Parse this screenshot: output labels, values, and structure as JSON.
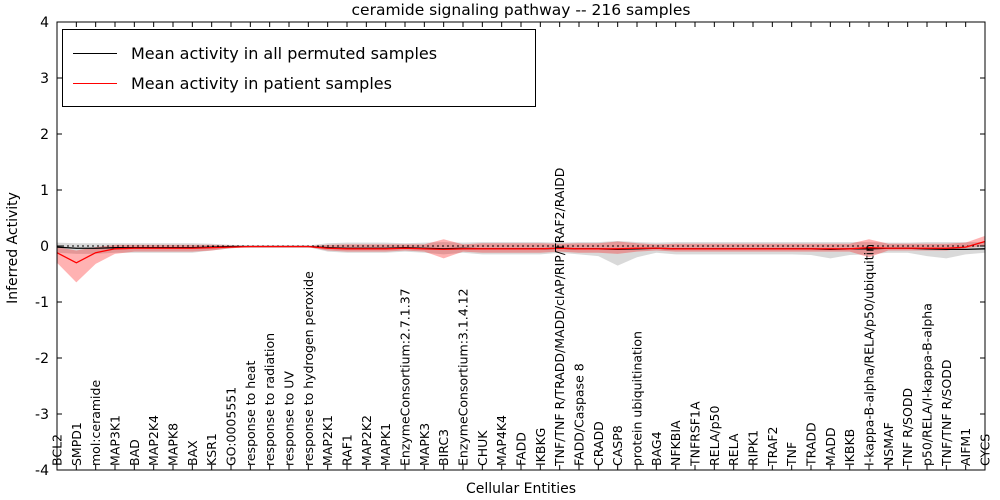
{
  "chart_data": {
    "type": "line",
    "title": "ceramide signaling pathway -- 216 samples",
    "xlabel": "Cellular Entities",
    "ylabel": "Inferred Activity",
    "ylim": [
      -4,
      4
    ],
    "yticks": [
      -4,
      -3,
      -2,
      -1,
      0,
      1,
      2,
      3,
      4
    ],
    "grid": false,
    "legend_position": "upper left",
    "zero_line": true,
    "categories": [
      "BCL2",
      "SMPD1",
      "mol:ceramide",
      "MAP3K1",
      "BAD",
      "MAP2K4",
      "MAPK8",
      "BAX",
      "KSR1",
      "GO:0005551",
      "response to heat",
      "response to radiation",
      "response to UV",
      "response to hydrogen peroxide",
      "MAP2K1",
      "RAF1",
      "MAP2K2",
      "MAPK1",
      "EnzymeConsortium:2.7.1.37",
      "MAPK3",
      "BIRC3",
      "EnzymeConsortium:3.1.4.12",
      "CHUK",
      "MAP4K4",
      "FADD",
      "IKBKG",
      "TNF/TNF R/TRADD/MADD/cIAP/RIP/TRAF2/RAIDD",
      "FADD/Caspase 8",
      "CRADD",
      "CASP8",
      "protein ubiquitination",
      "BAG4",
      "NFKBIA",
      "TNFRSF1A",
      "RELA/p50",
      "RELA",
      "RIPK1",
      "TRAF2",
      "TNF",
      "TRADD",
      "MADD",
      "IKBKB",
      "I-kappa-B-alpha/RELA/p50/ubiquitin",
      "NSMAF",
      "TNF R/SODD",
      "p50/RELA/I-kappa-B-alpha",
      "TNF/TNF R/SODD",
      "AIFM1",
      "CYCS"
    ],
    "series": [
      {
        "name": "Mean activity in all permuted samples",
        "color": "#000000",
        "values": [
          -0.02,
          -0.04,
          -0.04,
          -0.03,
          -0.03,
          -0.03,
          -0.03,
          -0.03,
          -0.02,
          -0.01,
          -0.01,
          -0.01,
          -0.01,
          -0.01,
          -0.03,
          -0.04,
          -0.04,
          -0.04,
          -0.03,
          -0.04,
          -0.05,
          -0.04,
          -0.05,
          -0.05,
          -0.05,
          -0.05,
          -0.04,
          -0.05,
          -0.05,
          -0.06,
          -0.05,
          -0.04,
          -0.05,
          -0.05,
          -0.05,
          -0.05,
          -0.05,
          -0.05,
          -0.05,
          -0.05,
          -0.06,
          -0.05,
          -0.05,
          -0.04,
          -0.04,
          -0.05,
          -0.06,
          -0.06,
          -0.05
        ]
      },
      {
        "name": "Mean activity in patient samples",
        "color": "#ff0000",
        "values": [
          -0.12,
          -0.3,
          -0.12,
          -0.05,
          -0.04,
          -0.04,
          -0.04,
          -0.04,
          -0.03,
          -0.02,
          -0.01,
          -0.01,
          -0.01,
          -0.01,
          -0.04,
          -0.05,
          -0.05,
          -0.05,
          -0.04,
          -0.05,
          -0.06,
          -0.05,
          -0.05,
          -0.05,
          -0.05,
          -0.05,
          -0.04,
          -0.05,
          -0.05,
          -0.05,
          -0.04,
          -0.04,
          -0.05,
          -0.05,
          -0.05,
          -0.05,
          -0.05,
          -0.05,
          -0.05,
          -0.05,
          -0.05,
          -0.05,
          -0.03,
          -0.04,
          -0.04,
          -0.04,
          -0.04,
          -0.02,
          0.08
        ]
      }
    ],
    "bands": [
      {
        "name": "permuted-samples-range",
        "color": "rgba(128,128,128,0.30)",
        "upper": [
          0.06,
          0.05,
          0.05,
          0.05,
          0.05,
          0.05,
          0.05,
          0.05,
          0.04,
          0.02,
          0.01,
          0.01,
          0.01,
          0.01,
          0.05,
          0.06,
          0.06,
          0.06,
          0.05,
          0.06,
          0.07,
          0.06,
          0.07,
          0.07,
          0.07,
          0.07,
          0.06,
          0.07,
          0.07,
          0.09,
          0.07,
          0.06,
          0.07,
          0.07,
          0.07,
          0.07,
          0.07,
          0.07,
          0.07,
          0.07,
          0.07,
          0.07,
          0.07,
          0.06,
          0.06,
          0.07,
          0.07,
          0.07,
          0.07
        ],
        "lower": [
          -0.12,
          -0.14,
          -0.14,
          -0.12,
          -0.12,
          -0.12,
          -0.12,
          -0.12,
          -0.08,
          -0.04,
          -0.02,
          -0.02,
          -0.02,
          -0.02,
          -0.1,
          -0.12,
          -0.12,
          -0.12,
          -0.1,
          -0.12,
          -0.15,
          -0.12,
          -0.15,
          -0.15,
          -0.15,
          -0.15,
          -0.12,
          -0.15,
          -0.18,
          -0.35,
          -0.2,
          -0.12,
          -0.15,
          -0.15,
          -0.15,
          -0.15,
          -0.15,
          -0.15,
          -0.15,
          -0.16,
          -0.22,
          -0.16,
          -0.15,
          -0.12,
          -0.12,
          -0.18,
          -0.22,
          -0.15,
          -0.12
        ]
      },
      {
        "name": "patient-samples-range",
        "color": "rgba(255,0,0,0.30)",
        "upper": [
          -0.02,
          -0.08,
          -0.02,
          0.02,
          0.02,
          0.02,
          0.02,
          0.02,
          0.02,
          0.01,
          0.0,
          0.0,
          0.0,
          0.0,
          0.02,
          0.03,
          0.03,
          0.03,
          0.03,
          0.03,
          0.12,
          0.03,
          0.05,
          0.05,
          0.05,
          0.05,
          0.04,
          0.05,
          0.05,
          0.08,
          0.05,
          0.03,
          0.04,
          0.04,
          0.04,
          0.04,
          0.04,
          0.04,
          0.04,
          0.04,
          0.04,
          0.04,
          0.12,
          0.04,
          0.04,
          0.04,
          0.04,
          0.06,
          0.18
        ],
        "lower": [
          -0.3,
          -0.65,
          -0.32,
          -0.14,
          -0.1,
          -0.1,
          -0.1,
          -0.1,
          -0.08,
          -0.04,
          -0.02,
          -0.02,
          -0.02,
          -0.02,
          -0.08,
          -0.1,
          -0.1,
          -0.1,
          -0.08,
          -0.1,
          -0.22,
          -0.1,
          -0.12,
          -0.12,
          -0.12,
          -0.12,
          -0.1,
          -0.12,
          -0.12,
          -0.14,
          -0.1,
          -0.08,
          -0.1,
          -0.1,
          -0.1,
          -0.1,
          -0.1,
          -0.1,
          -0.1,
          -0.1,
          -0.1,
          -0.1,
          -0.2,
          -0.08,
          -0.08,
          -0.08,
          -0.08,
          -0.04,
          0.0
        ]
      }
    ]
  }
}
